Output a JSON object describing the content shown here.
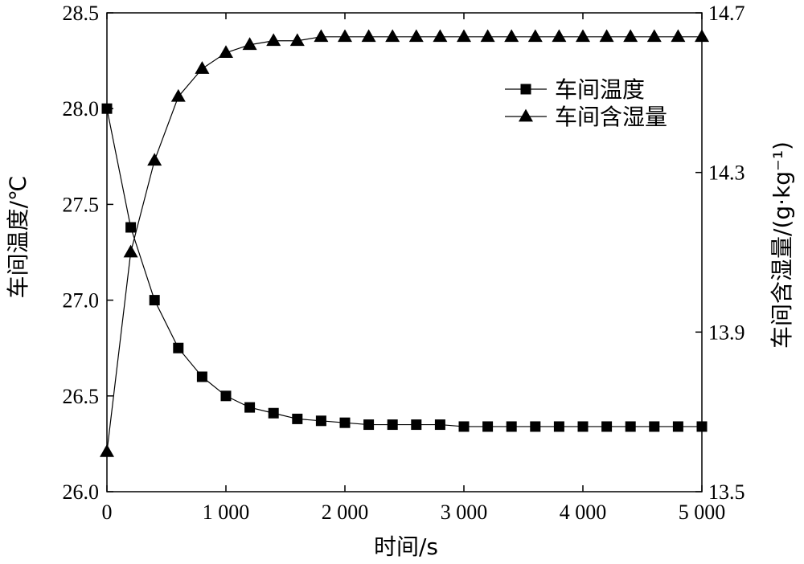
{
  "chart_data": {
    "type": "line",
    "xlabel": "时间/s",
    "ylabel_left": "车间温度/℃",
    "ylabel_right": "车间含湿量/(g·kg⁻¹)",
    "xlim": [
      0,
      5000
    ],
    "ylim_left": [
      26.0,
      28.5
    ],
    "ylim_right": [
      13.5,
      14.7
    ],
    "x_ticks": [
      0,
      1000,
      2000,
      3000,
      4000,
      5000
    ],
    "x_tick_labels": [
      "0",
      "1 000",
      "2 000",
      "3 000",
      "4 000",
      "5 000"
    ],
    "y_left_ticks": [
      26.0,
      26.5,
      27.0,
      27.5,
      28.0,
      28.5
    ],
    "y_left_tick_labels": [
      "26.0",
      "26.5",
      "27.0",
      "27.5",
      "28.0",
      "28.5"
    ],
    "y_right_ticks": [
      13.5,
      13.9,
      14.3,
      14.7
    ],
    "y_right_tick_labels": [
      "13.5",
      "13.9",
      "14.3",
      "14.7"
    ],
    "grid": false,
    "legend_position": "top-right",
    "series": [
      {
        "name": "车间温度",
        "axis": "left",
        "marker": "square",
        "x": [
          0,
          200,
          400,
          600,
          800,
          1000,
          1200,
          1400,
          1600,
          1800,
          2000,
          2200,
          2400,
          2600,
          2800,
          3000,
          3200,
          3400,
          3600,
          3800,
          4000,
          4200,
          4400,
          4600,
          4800,
          5000
        ],
        "y": [
          28.0,
          27.38,
          27.0,
          26.75,
          26.6,
          26.5,
          26.44,
          26.41,
          26.38,
          26.37,
          26.36,
          26.35,
          26.35,
          26.35,
          26.35,
          26.34,
          26.34,
          26.34,
          26.34,
          26.34,
          26.34,
          26.34,
          26.34,
          26.34,
          26.34,
          26.34
        ]
      },
      {
        "name": "车间含湿量",
        "axis": "right",
        "marker": "triangle",
        "x": [
          0,
          200,
          400,
          600,
          800,
          1000,
          1200,
          1400,
          1600,
          1800,
          2000,
          2200,
          2400,
          2600,
          2800,
          3000,
          3200,
          3400,
          3600,
          3800,
          4000,
          4200,
          4400,
          4600,
          4800,
          5000
        ],
        "y": [
          13.6,
          14.1,
          14.33,
          14.49,
          14.56,
          14.6,
          14.62,
          14.63,
          14.63,
          14.64,
          14.64,
          14.64,
          14.64,
          14.64,
          14.64,
          14.64,
          14.64,
          14.64,
          14.64,
          14.64,
          14.64,
          14.64,
          14.64,
          14.64,
          14.64,
          14.64
        ]
      }
    ]
  }
}
